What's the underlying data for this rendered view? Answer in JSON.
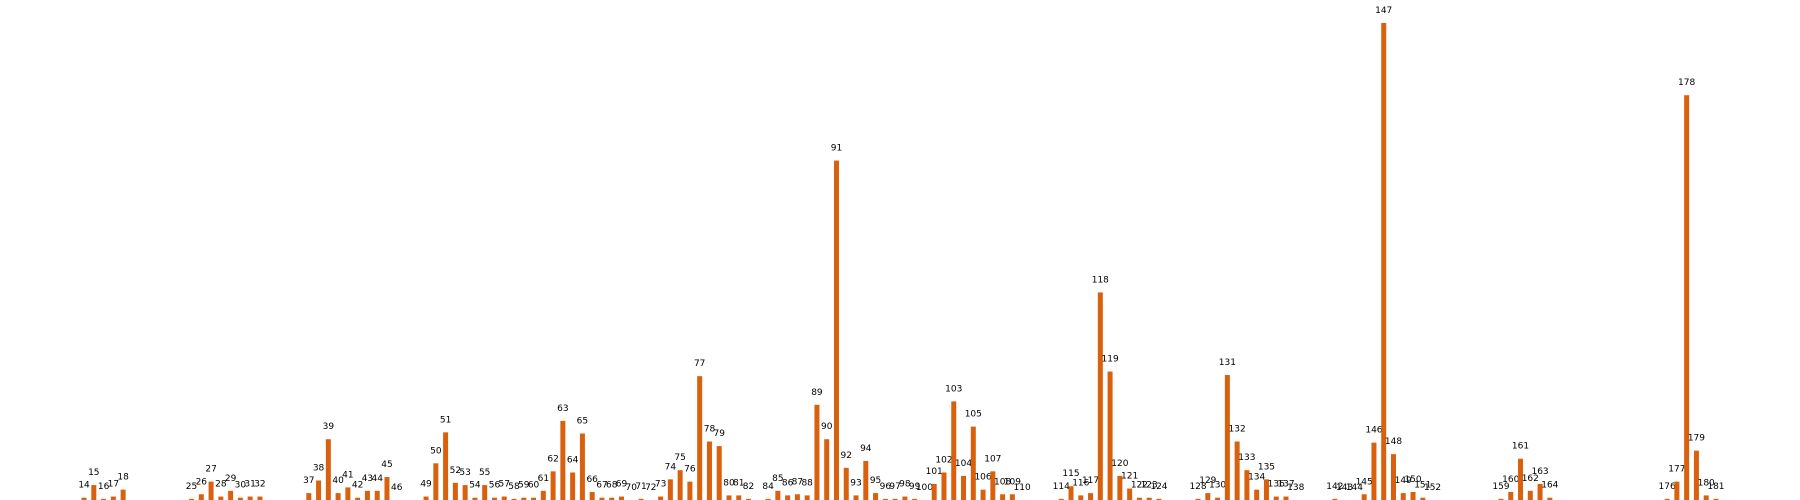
{
  "chart_data": {
    "type": "bar",
    "color": "#d9600c",
    "x": [
      14,
      15,
      16,
      17,
      18,
      25,
      26,
      27,
      28,
      29,
      30,
      31,
      32,
      37,
      38,
      39,
      40,
      41,
      42,
      43,
      44,
      45,
      46,
      49,
      50,
      51,
      52,
      53,
      54,
      55,
      56,
      57,
      58,
      59,
      60,
      61,
      62,
      63,
      64,
      65,
      66,
      67,
      68,
      69,
      70,
      71,
      72,
      73,
      74,
      75,
      76,
      77,
      78,
      79,
      80,
      81,
      82,
      84,
      85,
      86,
      87,
      88,
      89,
      90,
      91,
      92,
      93,
      94,
      95,
      96,
      97,
      98,
      99,
      100,
      101,
      102,
      103,
      104,
      105,
      106,
      107,
      108,
      109,
      110,
      114,
      115,
      116,
      117,
      118,
      119,
      120,
      121,
      122,
      123,
      124,
      128,
      129,
      130,
      131,
      132,
      133,
      134,
      135,
      136,
      137,
      138,
      142,
      143,
      144,
      145,
      146,
      147,
      148,
      149,
      150,
      151,
      152,
      159,
      160,
      161,
      162,
      163,
      164,
      176,
      177,
      178,
      179,
      180,
      181
    ],
    "values": [
      2,
      13,
      1,
      3,
      9,
      1,
      5,
      16,
      3,
      8,
      2,
      3,
      3,
      6,
      17,
      53,
      6,
      11,
      2,
      8,
      8,
      20,
      0,
      3,
      32,
      59,
      15,
      13,
      2,
      13,
      2,
      3,
      1,
      2,
      2,
      8,
      25,
      69,
      24,
      58,
      7,
      2,
      2,
      3,
      0,
      1,
      0,
      3,
      18,
      26,
      16,
      108,
      51,
      47,
      4,
      4,
      1,
      1,
      8,
      4,
      5,
      4,
      83,
      53,
      296,
      28,
      4,
      34,
      6,
      1,
      1,
      3,
      1,
      0,
      14,
      24,
      86,
      21,
      64,
      9,
      25,
      5,
      5,
      0,
      1,
      12,
      4,
      6,
      181,
      112,
      21,
      10,
      2,
      2,
      1,
      1,
      6,
      2,
      109,
      51,
      26,
      9,
      18,
      3,
      3,
      0,
      1,
      0,
      0,
      5,
      50,
      416,
      40,
      6,
      7,
      2,
      0,
      1,
      7,
      36,
      8,
      14,
      2,
      1,
      16,
      353,
      43,
      4,
      1
    ],
    "xlim": [
      5.4,
      189.6
    ],
    "ylim": [
      0,
      436
    ]
  }
}
